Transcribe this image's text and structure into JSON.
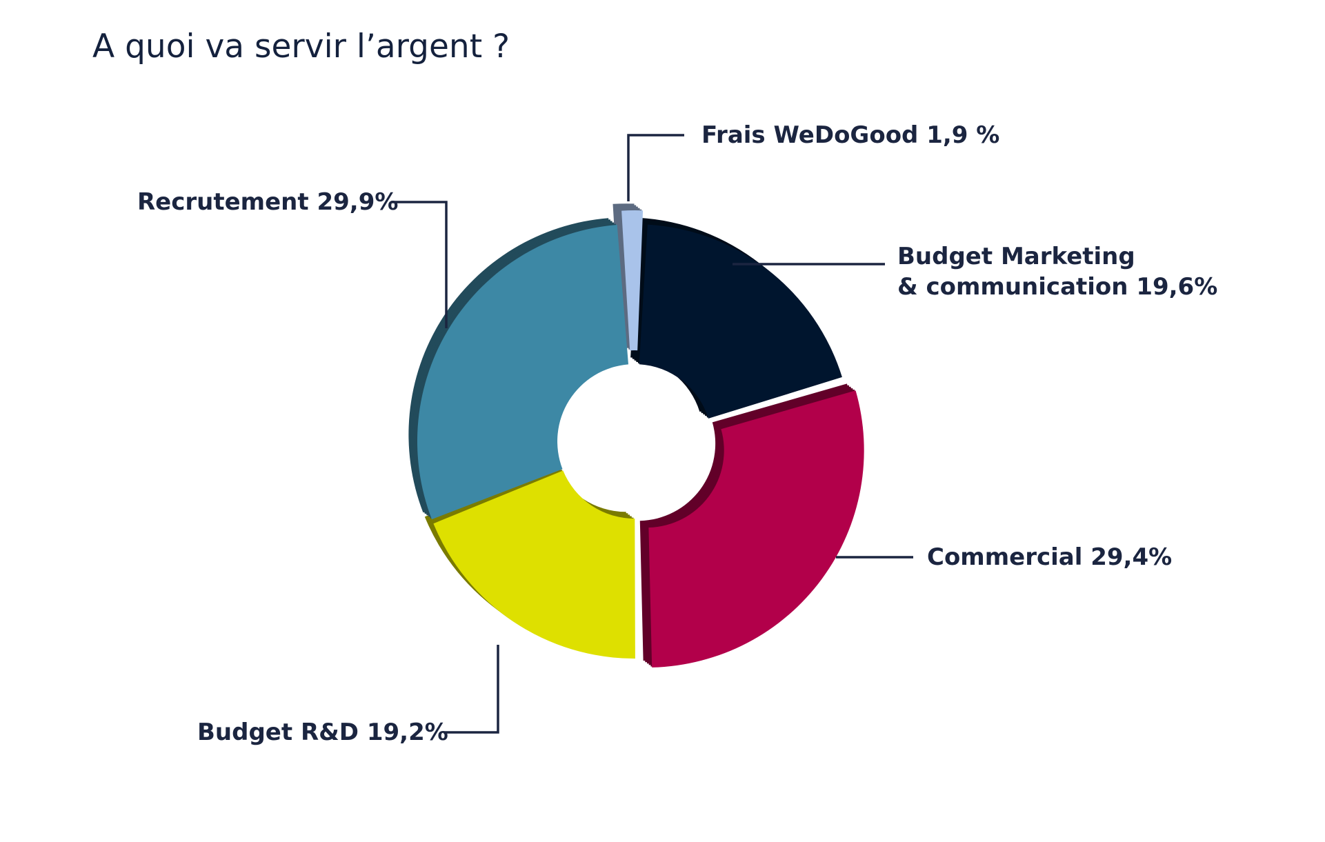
{
  "chart_data": {
    "type": "pie",
    "title": "A quoi va servir l’argent ?",
    "slices": [
      {
        "name": "Frais WeDoGood",
        "label_text": "Frais WeDoGood 1,9 %",
        "value": 1.9,
        "color": "#a9c3ea"
      },
      {
        "name": "Budget Marketing & communication",
        "label_lines": [
          "Budget Marketing",
          "& communication 19,6%"
        ],
        "value": 19.6,
        "color": "#00152e"
      },
      {
        "name": "Commercial",
        "label_text": "Commercial 29,4%",
        "value": 29.4,
        "color": "#b2004a"
      },
      {
        "name": "Budget R&D",
        "label_text": "Budget R&D 19,2%",
        "value": 19.2,
        "color": "#dee000"
      },
      {
        "name": "Recrutement",
        "label_text": "Recrutement 29,9%",
        "value": 29.9,
        "color": "#3d88a5"
      }
    ]
  }
}
